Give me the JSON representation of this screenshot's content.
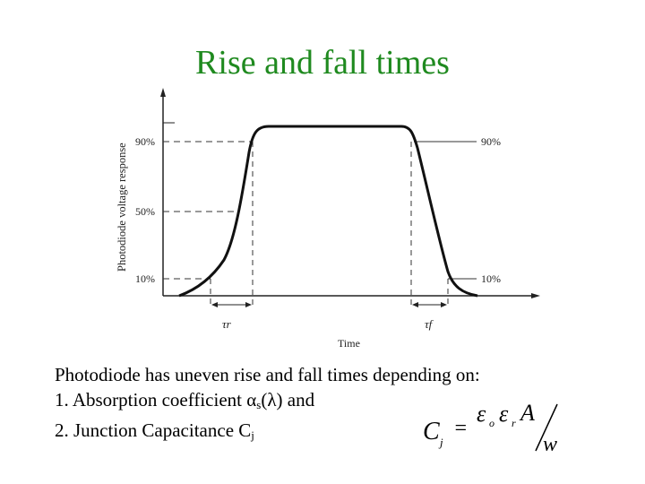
{
  "slide": {
    "title": "Rise and fall times",
    "colors": {
      "title": "#1f8a1f"
    }
  },
  "figure": {
    "y_axis_label": "Photodiode voltage response",
    "x_axis_label": "Time",
    "left_levels": [
      "90%",
      "50%",
      "10%"
    ],
    "right_levels": [
      "90%",
      "10%"
    ],
    "rise_label": "τr",
    "fall_label": "τf"
  },
  "text": {
    "intro": "Photodiode has uneven rise and fall times depending on:",
    "item1_prefix": "1.  Absorption coefficient ",
    "item1_symbol": "α",
    "item1_subscript": "s",
    "item1_suffix": "(λ) and",
    "item2_prefix": "2.  Junction Capacitance C",
    "item2_subscript": "j"
  },
  "formula": {
    "lhs": "C",
    "lhs_sub": "j",
    "equals": "=",
    "eps1": "ε",
    "eps1_sub": "o",
    "eps2": "ε",
    "eps2_sub": "r",
    "area": "A",
    "width": "w"
  }
}
